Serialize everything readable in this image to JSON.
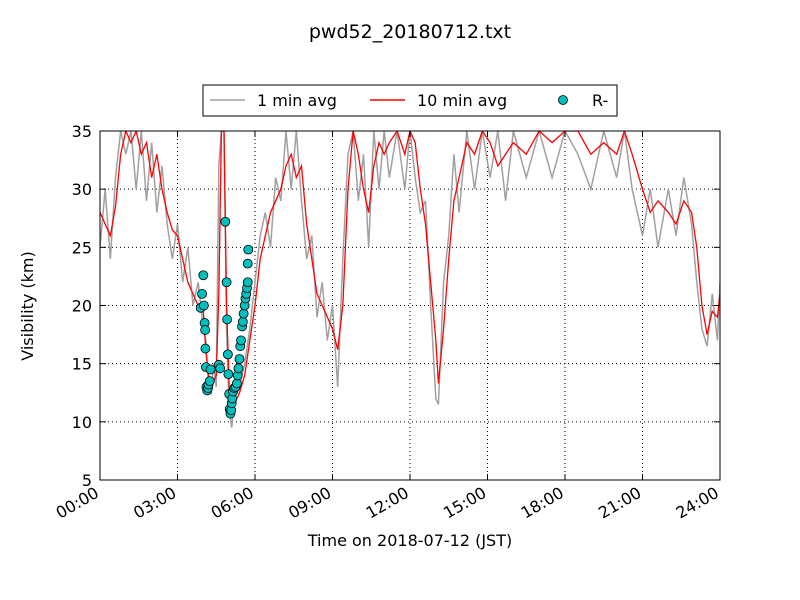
{
  "chart_data": {
    "type": "line",
    "title": "pwd52_20180712.txt",
    "xlabel": "Time on 2018-07-12 (JST)",
    "ylabel": "Visibility (km)",
    "xlim": [
      0,
      24
    ],
    "ylim": [
      5,
      35
    ],
    "xticks": [
      {
        "value": 0,
        "label": "00:00"
      },
      {
        "value": 3,
        "label": "03:00"
      },
      {
        "value": 6,
        "label": "06:00"
      },
      {
        "value": 9,
        "label": "09:00"
      },
      {
        "value": 12,
        "label": "12:00"
      },
      {
        "value": 15,
        "label": "15:00"
      },
      {
        "value": 18,
        "label": "18:00"
      },
      {
        "value": 21,
        "label": "21:00"
      },
      {
        "value": 24,
        "label": "24:00"
      }
    ],
    "yticks": [
      5,
      10,
      15,
      20,
      25,
      30,
      35
    ],
    "grid": true,
    "legend": "upper center",
    "series": [
      {
        "name": "1 min avg",
        "color": "#a0a0a0",
        "kind": "line",
        "x": [
          0.0,
          0.2,
          0.4,
          0.6,
          0.8,
          1.0,
          1.2,
          1.4,
          1.6,
          1.8,
          2.0,
          2.2,
          2.4,
          2.6,
          2.8,
          3.0,
          3.2,
          3.4,
          3.6,
          3.8,
          4.0,
          4.1,
          4.2,
          4.3,
          4.4,
          4.5,
          4.6,
          4.7,
          4.8,
          4.9,
          5.0,
          5.1,
          5.2,
          5.4,
          5.6,
          5.8,
          6.0,
          6.2,
          6.4,
          6.6,
          6.8,
          7.0,
          7.2,
          7.4,
          7.6,
          7.8,
          8.0,
          8.2,
          8.4,
          8.6,
          8.8,
          9.0,
          9.2,
          9.4,
          9.6,
          9.8,
          10.0,
          10.2,
          10.4,
          10.6,
          10.8,
          11.0,
          11.2,
          11.5,
          11.8,
          12.0,
          12.2,
          12.4,
          12.6,
          12.8,
          13.0,
          13.1,
          13.3,
          13.5,
          13.7,
          13.9,
          14.2,
          14.5,
          14.8,
          15.1,
          15.4,
          15.7,
          16.0,
          16.5,
          17.0,
          17.5,
          18.0,
          18.5,
          19.0,
          19.5,
          20.0,
          20.3,
          20.6,
          21.0,
          21.3,
          21.6,
          22.0,
          22.3,
          22.6,
          22.9,
          23.1,
          23.3,
          23.5,
          23.7,
          23.9,
          24.0
        ],
        "values": [
          25,
          30,
          24,
          31,
          35,
          33,
          35,
          30,
          35,
          29,
          34,
          28,
          32,
          27,
          24,
          27,
          22,
          25,
          20,
          22,
          18,
          17,
          13,
          12.5,
          15,
          13,
          32,
          35,
          35,
          18,
          11,
          9.5,
          12,
          13,
          15,
          18,
          22,
          26,
          28,
          25,
          31,
          29,
          35,
          30,
          35,
          29,
          24,
          26,
          19,
          22,
          17,
          20,
          13,
          24,
          33,
          35,
          29,
          33,
          25,
          35,
          30,
          35,
          31,
          35,
          30,
          35,
          31,
          28,
          29,
          20,
          12,
          11.5,
          22,
          26,
          33,
          28,
          35,
          30,
          35,
          31,
          35,
          29,
          35,
          31,
          35,
          31,
          35,
          33,
          30,
          35,
          31,
          35,
          30,
          26,
          30,
          25,
          30,
          26,
          31,
          27,
          22,
          18,
          16.5,
          21,
          17,
          22
        ]
      },
      {
        "name": "10 min avg",
        "color": "#ff0000",
        "kind": "line",
        "x": [
          0.0,
          0.2,
          0.4,
          0.6,
          0.8,
          1.0,
          1.2,
          1.4,
          1.6,
          1.8,
          2.0,
          2.2,
          2.4,
          2.6,
          2.8,
          3.0,
          3.2,
          3.4,
          3.6,
          3.8,
          4.0,
          4.1,
          4.2,
          4.3,
          4.4,
          4.5,
          4.6,
          4.7,
          4.8,
          4.9,
          5.0,
          5.1,
          5.2,
          5.4,
          5.6,
          5.8,
          6.0,
          6.2,
          6.4,
          6.6,
          6.8,
          7.0,
          7.2,
          7.4,
          7.6,
          7.8,
          8.0,
          8.2,
          8.4,
          8.6,
          8.8,
          9.0,
          9.2,
          9.4,
          9.6,
          9.8,
          10.0,
          10.2,
          10.4,
          10.6,
          10.8,
          11.0,
          11.2,
          11.5,
          11.8,
          12.0,
          12.2,
          12.4,
          12.6,
          12.8,
          13.0,
          13.1,
          13.3,
          13.5,
          13.7,
          13.9,
          14.2,
          14.5,
          14.8,
          15.1,
          15.4,
          15.7,
          16.0,
          16.5,
          17.0,
          17.5,
          18.0,
          18.5,
          19.0,
          19.5,
          20.0,
          20.3,
          20.6,
          21.0,
          21.3,
          21.6,
          22.0,
          22.3,
          22.6,
          22.9,
          23.1,
          23.3,
          23.5,
          23.7,
          23.9,
          24.0
        ],
        "values": [
          28,
          27,
          26,
          28.5,
          33,
          35,
          34,
          35,
          33,
          34,
          31,
          33,
          30,
          28,
          26.5,
          26,
          24,
          22,
          21,
          20,
          19.5,
          16,
          14,
          13,
          13.5,
          14,
          21,
          35,
          35,
          20,
          13,
          11,
          11.5,
          12.5,
          14,
          17,
          20,
          24,
          26,
          28,
          29,
          30,
          32,
          33,
          31,
          32,
          27,
          24,
          21,
          20,
          19,
          18,
          16.2,
          20,
          30,
          35,
          33,
          30,
          28,
          32,
          34,
          33,
          34,
          35,
          33,
          35,
          34,
          30,
          27,
          22,
          17,
          13.3,
          18,
          24,
          29,
          31,
          34,
          33,
          35,
          34,
          32,
          33,
          34,
          33,
          35,
          34,
          35,
          35,
          33,
          34,
          33,
          35,
          33,
          30,
          28,
          29,
          28,
          27,
          29,
          28,
          25,
          20,
          17.5,
          19.5,
          19,
          21
        ]
      },
      {
        "name": "R-",
        "color": "#00bfbf",
        "kind": "scatter",
        "x": [
          3.9,
          3.95,
          4.0,
          4.02,
          4.05,
          4.07,
          4.08,
          4.1,
          4.12,
          4.15,
          4.18,
          4.2,
          4.25,
          4.28,
          4.6,
          4.65,
          4.85,
          4.9,
          4.92,
          4.95,
          4.97,
          5.0,
          5.02,
          5.05,
          5.08,
          5.1,
          5.12,
          5.15,
          5.2,
          5.25,
          5.3,
          5.33,
          5.36,
          5.4,
          5.43,
          5.46,
          5.5,
          5.53,
          5.56,
          5.6,
          5.63,
          5.66,
          5.69,
          5.72,
          5.72,
          5.74
        ],
        "values": [
          19.8,
          21,
          22.6,
          20,
          18.5,
          17.9,
          16.3,
          14.7,
          13,
          12.7,
          12.9,
          13.2,
          13.5,
          14.5,
          14.9,
          14.6,
          27.2,
          22,
          18.8,
          15.8,
          14.1,
          12.4,
          11.1,
          10.7,
          11,
          11.6,
          12,
          12.6,
          12.9,
          13,
          13.3,
          14,
          14.6,
          15.4,
          16.5,
          17,
          18.2,
          18.6,
          19.3,
          20,
          20.6,
          21,
          21.5,
          22,
          23.6,
          24.8
        ]
      }
    ]
  }
}
